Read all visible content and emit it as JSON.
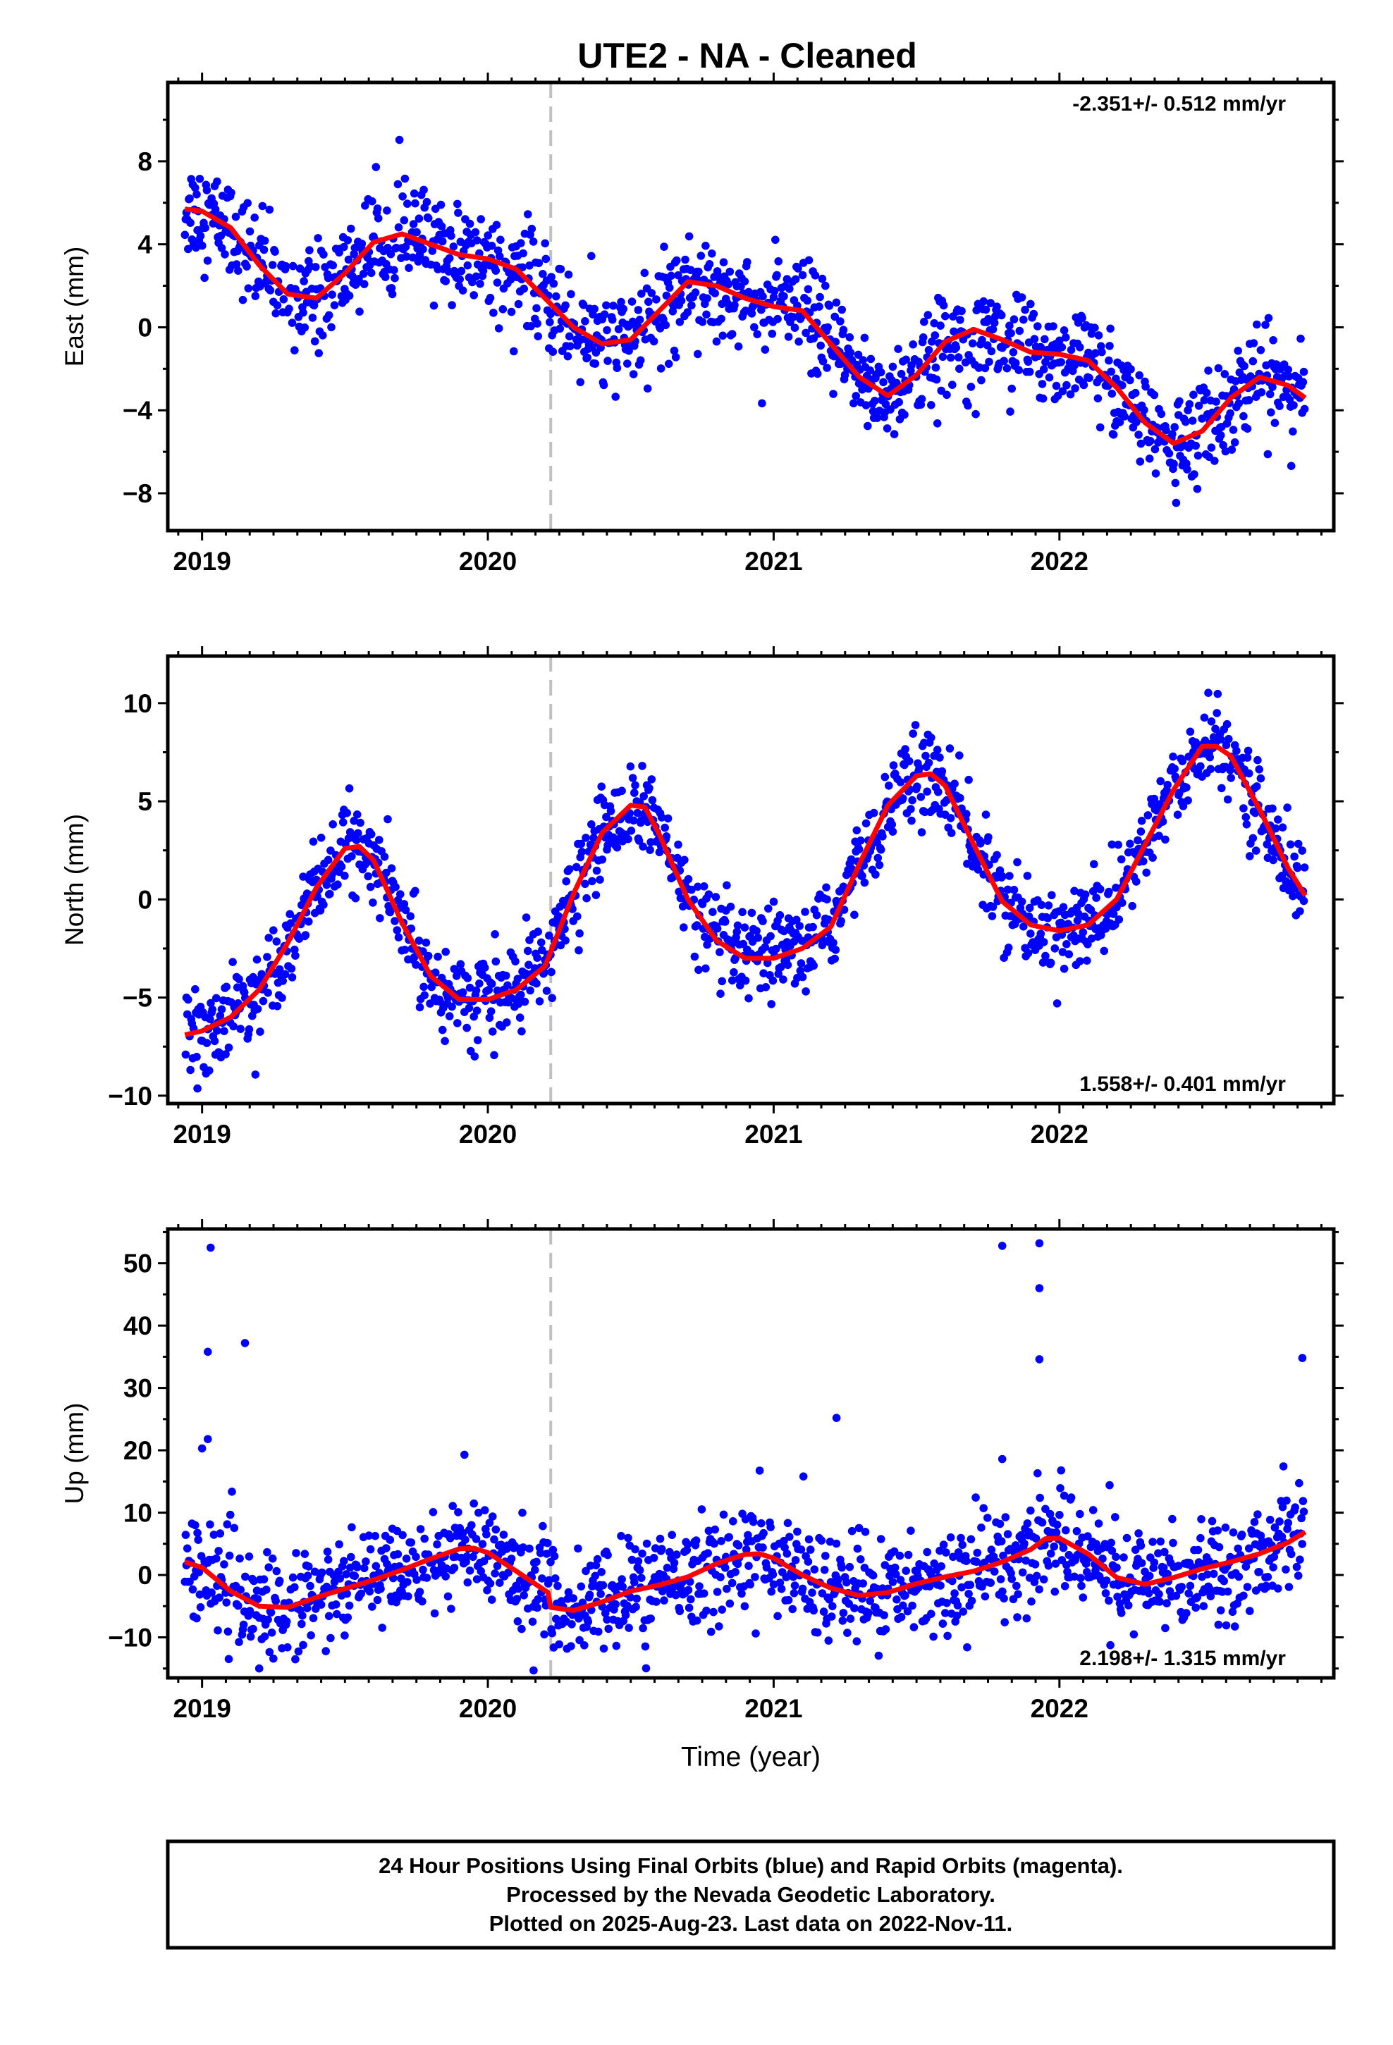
{
  "figure": {
    "title": "UTE2  - NA - Cleaned",
    "footer": [
      "24 Hour Positions Using Final Orbits (blue) and Rapid Orbits (magenta).",
      "Processed by the Nevada Geodetic Laboratory.",
      "Plotted on 2025-Aug-23. Last data on 2022-Nov-11."
    ],
    "colors": {
      "points": "#0000ff",
      "fit": "#ff0000",
      "event_line": "#c0c0c0",
      "frame": "#000000"
    }
  },
  "chart_data": [
    {
      "type": "scatter",
      "ylabel": "East (mm)",
      "xlabel": "",
      "xlim": [
        2018.88,
        2022.96
      ],
      "ylim": [
        -9.8,
        11.8
      ],
      "xticks": [
        "2019",
        "2020",
        "2021",
        "2022"
      ],
      "yticks": [
        8,
        4,
        0,
        -4,
        -8
      ],
      "event_line_x": 2020.22,
      "rate_label": "-2.351+/- 0.512 mm/yr",
      "rate_label_position": "top-right",
      "series": [
        {
          "values": {
            "t": [
              2018.94,
              2019.0,
              2019.1,
              2019.2,
              2019.3,
              2019.4,
              2019.5,
              2019.6,
              2019.7,
              2019.8,
              2019.9,
              2020.0,
              2020.1,
              2020.2,
              2020.3,
              2020.4,
              2020.5,
              2020.6,
              2020.7,
              2020.8,
              2020.9,
              2021.0,
              2021.1,
              2021.2,
              2021.3,
              2021.4,
              2021.5,
              2021.6,
              2021.7,
              2021.8,
              2021.9,
              2022.0,
              2022.1,
              2022.2,
              2022.3,
              2022.4,
              2022.5,
              2022.6,
              2022.7,
              2022.8,
              2022.86
            ],
            "y": [
              5.7,
              5.6,
              4.8,
              3.0,
              1.6,
              1.4,
              2.6,
              4.1,
              4.5,
              4.0,
              3.5,
              3.3,
              2.8,
              1.4,
              0.0,
              -0.8,
              -0.6,
              0.8,
              2.2,
              2.0,
              1.4,
              1.0,
              0.8,
              -0.8,
              -2.4,
              -3.3,
              -2.3,
              -0.7,
              -0.1,
              -0.6,
              -1.2,
              -1.3,
              -1.6,
              -2.9,
              -4.6,
              -5.6,
              -5.0,
              -3.4,
              -2.4,
              -2.8,
              -3.4
            ]
          }
        },
        {
          "values": {
            "t": [
              2018.95,
              2019.0,
              2019.1,
              2019.2,
              2019.3,
              2019.4,
              2019.5,
              2019.6,
              2019.7,
              2019.8,
              2019.9,
              2020.0,
              2020.1,
              2020.2,
              2020.3,
              2020.4,
              2020.5,
              2020.6,
              2020.7,
              2020.8,
              2020.9,
              2021.0,
              2021.1,
              2021.2,
              2021.3,
              2021.4,
              2021.5,
              2021.6,
              2021.7,
              2021.8,
              2021.9,
              2022.0,
              2022.1,
              2022.2,
              2022.3,
              2022.4,
              2022.5,
              2022.6,
              2022.7,
              2022.8,
              2022.86
            ],
            "y": [
              5.7,
              5.6,
              4.8,
              3.0,
              1.6,
              1.4,
              2.6,
              4.1,
              4.5,
              4.0,
              3.5,
              3.3,
              2.8,
              1.4,
              0.0,
              -0.8,
              -0.6,
              0.8,
              2.2,
              2.0,
              1.4,
              1.0,
              0.8,
              -0.8,
              -2.4,
              -3.3,
              -2.3,
              -0.7,
              -0.1,
              -0.6,
              -1.2,
              -1.3,
              -1.6,
              -2.9,
              -4.6,
              -5.6,
              -5.0,
              -3.4,
              -2.4,
              -2.8,
              -3.4
            ],
            "scatter_sd": 1.2
          }
        }
      ]
    },
    {
      "type": "scatter",
      "ylabel": "North (mm)",
      "xlabel": "",
      "xlim": [
        2018.88,
        2022.96
      ],
      "ylim": [
        -10.4,
        12.4
      ],
      "xticks": [
        "2019",
        "2020",
        "2021",
        "2022"
      ],
      "yticks": [
        10,
        5,
        0,
        -5,
        -10
      ],
      "event_line_x": 2020.22,
      "rate_label": "1.558+/- 0.401 mm/yr",
      "rate_label_position": "bottom-right",
      "series": [
        {
          "values": {
            "t": [
              2018.94,
              2019.0,
              2019.1,
              2019.2,
              2019.3,
              2019.4,
              2019.5,
              2019.55,
              2019.6,
              2019.7,
              2019.8,
              2019.9,
              2020.0,
              2020.1,
              2020.2,
              2020.3,
              2020.4,
              2020.5,
              2020.55,
              2020.6,
              2020.7,
              2020.8,
              2020.9,
              2021.0,
              2021.1,
              2021.2,
              2021.3,
              2021.4,
              2021.5,
              2021.55,
              2021.6,
              2021.7,
              2021.8,
              2021.9,
              2022.0,
              2022.1,
              2022.2,
              2022.3,
              2022.4,
              2022.5,
              2022.55,
              2022.6,
              2022.7,
              2022.8,
              2022.86
            ],
            "y": [
              -6.9,
              -6.7,
              -6.0,
              -4.6,
              -2.2,
              0.6,
              2.6,
              2.7,
              2.0,
              -1.2,
              -3.9,
              -5.1,
              -5.1,
              -4.6,
              -3.4,
              0.3,
              3.4,
              4.8,
              4.7,
              3.3,
              0.0,
              -2.1,
              -3.0,
              -3.0,
              -2.5,
              -1.4,
              1.8,
              4.8,
              6.3,
              6.4,
              5.8,
              2.8,
              -0.1,
              -1.3,
              -1.6,
              -1.3,
              0.0,
              2.8,
              5.6,
              7.8,
              7.8,
              7.3,
              4.6,
              1.6,
              0.2
            ]
          }
        },
        {
          "values": {
            "t": [
              2018.94,
              2019.0,
              2019.1,
              2019.2,
              2019.3,
              2019.4,
              2019.5,
              2019.55,
              2019.6,
              2019.7,
              2019.8,
              2019.9,
              2020.0,
              2020.1,
              2020.2,
              2020.3,
              2020.4,
              2020.5,
              2020.55,
              2020.6,
              2020.7,
              2020.8,
              2020.9,
              2021.0,
              2021.1,
              2021.2,
              2021.3,
              2021.4,
              2021.5,
              2021.55,
              2021.6,
              2021.7,
              2021.8,
              2021.9,
              2022.0,
              2022.1,
              2022.2,
              2022.3,
              2022.4,
              2022.5,
              2022.55,
              2022.6,
              2022.7,
              2022.8,
              2022.86
            ],
            "y": [
              -6.9,
              -6.7,
              -6.0,
              -4.6,
              -2.2,
              0.6,
              2.6,
              2.7,
              2.0,
              -1.2,
              -3.9,
              -5.1,
              -5.1,
              -4.6,
              -3.4,
              0.3,
              3.4,
              4.8,
              4.7,
              3.3,
              0.0,
              -2.1,
              -3.0,
              -3.0,
              -2.5,
              -1.4,
              1.8,
              4.8,
              6.3,
              6.4,
              5.8,
              2.8,
              -0.1,
              -1.3,
              -1.6,
              -1.3,
              0.0,
              2.8,
              5.6,
              7.8,
              7.8,
              7.3,
              4.6,
              1.6,
              0.2
            ],
            "scatter_sd": 1.1
          }
        }
      ]
    },
    {
      "type": "scatter",
      "ylabel": "Up (mm)",
      "xlabel": "Time (year)",
      "xlim": [
        2018.88,
        2022.96
      ],
      "ylim": [
        -16.5,
        55.5
      ],
      "xticks": [
        "2019",
        "2020",
        "2021",
        "2022"
      ],
      "yticks": [
        50,
        40,
        30,
        20,
        10,
        0,
        -10
      ],
      "event_line_x": 2020.22,
      "rate_label": "2.198+/- 1.315 mm/yr",
      "rate_label_position": "bottom-right",
      "series": [
        {
          "values": {
            "t": [
              2018.94,
              2019.0,
              2019.1,
              2019.2,
              2019.3,
              2019.4,
              2019.5,
              2019.6,
              2019.7,
              2019.8,
              2019.9,
              2019.95,
              2020.0,
              2020.1,
              2020.21,
              2020.22,
              2020.3,
              2020.4,
              2020.5,
              2020.6,
              2020.7,
              2020.8,
              2020.9,
              2020.95,
              2021.0,
              2021.1,
              2021.2,
              2021.3,
              2021.4,
              2021.5,
              2021.6,
              2021.7,
              2021.8,
              2021.9,
              2021.95,
              2022.0,
              2022.1,
              2022.2,
              2022.3,
              2022.4,
              2022.5,
              2022.6,
              2022.7,
              2022.8,
              2022.86
            ],
            "y": [
              2.1,
              1.2,
              -2.6,
              -5.0,
              -5.2,
              -3.6,
              -2.2,
              -0.8,
              0.8,
              2.6,
              4.2,
              4.3,
              3.6,
              0.6,
              -2.8,
              -5.2,
              -5.7,
              -4.3,
              -2.6,
              -1.6,
              -0.3,
              1.8,
              3.3,
              3.4,
              2.7,
              0.0,
              -2.1,
              -3.3,
              -2.8,
              -1.4,
              -0.3,
              0.6,
              2.1,
              4.1,
              5.8,
              5.9,
              3.4,
              -0.4,
              -1.5,
              -0.4,
              1.0,
              2.1,
              3.4,
              5.2,
              6.9
            ]
          }
        },
        {
          "values": {
            "t": [
              2018.94,
              2019.0,
              2019.1,
              2019.2,
              2019.3,
              2019.4,
              2019.5,
              2019.6,
              2019.7,
              2019.8,
              2019.9,
              2019.95,
              2020.0,
              2020.1,
              2020.21,
              2020.22,
              2020.3,
              2020.4,
              2020.5,
              2020.6,
              2020.7,
              2020.8,
              2020.9,
              2020.95,
              2021.0,
              2021.1,
              2021.2,
              2021.3,
              2021.4,
              2021.5,
              2021.6,
              2021.7,
              2021.8,
              2021.9,
              2021.95,
              2022.0,
              2022.1,
              2022.2,
              2022.3,
              2022.4,
              2022.5,
              2022.6,
              2022.7,
              2022.8,
              2022.86
            ],
            "y": [
              2.1,
              1.2,
              -2.6,
              -5.0,
              -5.2,
              -3.6,
              -2.2,
              -0.8,
              0.8,
              2.6,
              4.2,
              4.3,
              3.6,
              0.6,
              -2.8,
              -5.2,
              -5.7,
              -4.3,
              -2.6,
              -1.6,
              -0.3,
              1.8,
              3.3,
              3.4,
              2.7,
              0.0,
              -2.1,
              -3.3,
              -2.8,
              -1.4,
              -0.3,
              0.6,
              2.1,
              4.1,
              5.8,
              5.9,
              3.4,
              -0.4,
              -1.5,
              -0.4,
              1.0,
              2.1,
              3.4,
              5.2,
              6.9
            ],
            "scatter_sd": 4.2,
            "outliers": [
              [
                2019.03,
                52.5
              ],
              [
                2019.02,
                35.8
              ],
              [
                2019.15,
                37.2
              ],
              [
                2019.02,
                21.8
              ],
              [
                2019.0,
                20.3
              ],
              [
                2021.22,
                25.2
              ],
              [
                2021.8,
                52.8
              ],
              [
                2021.93,
                53.2
              ],
              [
                2021.93,
                46.0
              ],
              [
                2021.93,
                34.6
              ],
              [
                2021.8,
                18.6
              ],
              [
                2022.85,
                34.8
              ],
              [
                2020.16,
                -15.3
              ],
              [
                2019.2,
                -15.0
              ]
            ]
          }
        }
      ]
    }
  ]
}
